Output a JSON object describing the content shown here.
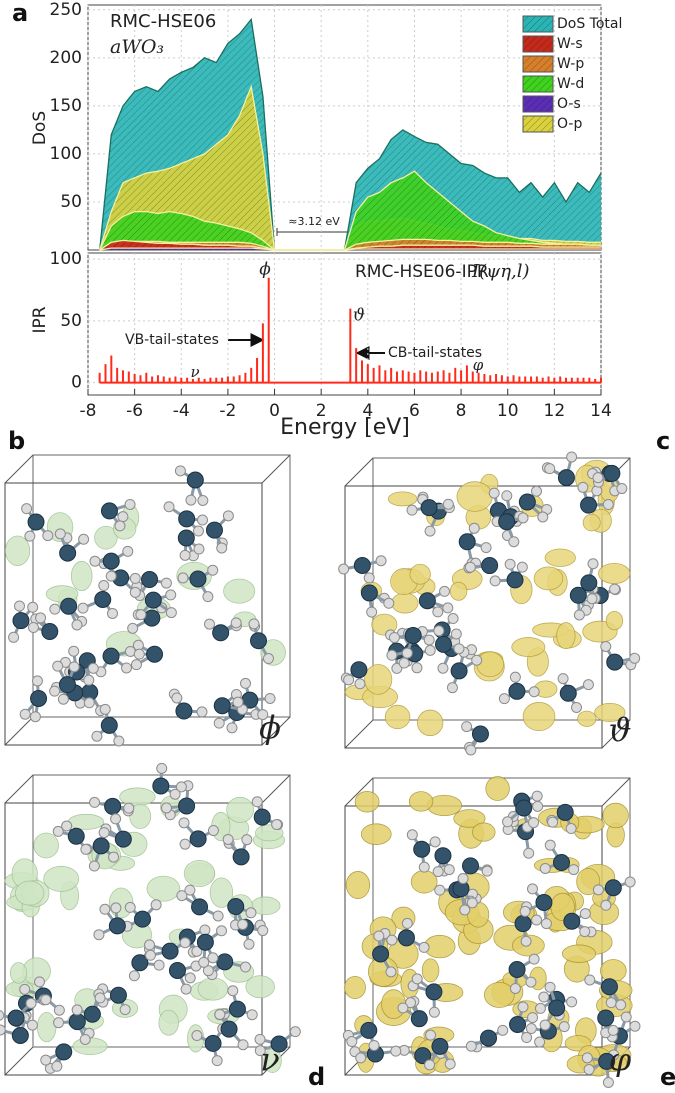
{
  "chart_data": [
    {
      "type": "area",
      "label": "a",
      "ylabel": "DoS",
      "annotations": [
        "RMC-HSE06",
        "aWO₃",
        "≈3.12 eV"
      ],
      "x": [
        -7.5,
        -7,
        -6.5,
        -6,
        -5.5,
        -5,
        -4.5,
        -4,
        -3.5,
        -3,
        -2.5,
        -2,
        -1.5,
        -1,
        -0.5,
        0,
        0.5,
        1,
        1.5,
        2,
        2.5,
        3,
        3.5,
        4,
        4.5,
        5,
        5.5,
        6,
        6.5,
        7,
        7.5,
        8,
        8.5,
        9,
        9.5,
        10,
        10.5,
        11,
        11.5,
        12,
        12.5,
        13,
        13.5,
        14
      ],
      "series": [
        {
          "name": "DoS Total",
          "color": "#2ab5b5",
          "values": [
            0,
            120,
            150,
            165,
            170,
            165,
            178,
            185,
            190,
            200,
            195,
            215,
            225,
            240,
            160,
            0,
            0,
            0,
            0,
            0,
            0,
            0,
            70,
            85,
            95,
            115,
            125,
            118,
            112,
            110,
            100,
            90,
            88,
            80,
            75,
            75,
            60,
            70,
            55,
            70,
            50,
            70,
            60,
            80
          ]
        },
        {
          "name": "W-s",
          "color": "#c42a1c",
          "values": [
            0,
            8,
            10,
            9,
            8,
            7,
            7,
            6,
            6,
            5,
            5,
            5,
            4,
            4,
            2,
            0,
            0,
            0,
            0,
            0,
            0,
            0,
            2,
            3,
            4,
            4,
            5,
            5,
            5,
            5,
            5,
            5,
            5,
            4,
            4,
            4,
            4,
            4,
            3,
            3,
            3,
            3,
            3,
            3
          ]
        },
        {
          "name": "W-p",
          "color": "#d6802c",
          "values": [
            0,
            6,
            8,
            9,
            9,
            9,
            8,
            8,
            8,
            8,
            8,
            8,
            8,
            7,
            4,
            0,
            0,
            0,
            0,
            0,
            0,
            0,
            6,
            8,
            9,
            10,
            11,
            11,
            11,
            10,
            10,
            9,
            9,
            8,
            8,
            8,
            7,
            7,
            6,
            6,
            6,
            6,
            5,
            5
          ]
        },
        {
          "name": "W-d",
          "color": "#3fd21f",
          "values": [
            0,
            25,
            35,
            40,
            40,
            38,
            40,
            38,
            35,
            30,
            28,
            25,
            22,
            18,
            10,
            0,
            0,
            0,
            0,
            0,
            0,
            0,
            40,
            55,
            60,
            70,
            75,
            82,
            70,
            60,
            50,
            40,
            30,
            25,
            18,
            15,
            12,
            10,
            8,
            7,
            6,
            5,
            5,
            4
          ]
        },
        {
          "name": "O-s",
          "color": "#5b2fb5",
          "values": [
            0,
            2,
            2,
            2,
            2,
            2,
            2,
            2,
            2,
            2,
            2,
            2,
            2,
            2,
            1,
            0,
            0,
            0,
            0,
            0,
            0,
            0,
            1,
            1,
            1,
            1,
            1,
            1,
            1,
            1,
            1,
            1,
            1,
            1,
            1,
            1,
            1,
            1,
            1,
            1,
            1,
            1,
            1,
            1
          ]
        },
        {
          "name": "O-p",
          "color": "#d9d23c",
          "values": [
            0,
            40,
            70,
            75,
            80,
            82,
            85,
            90,
            95,
            100,
            110,
            120,
            140,
            170,
            100,
            0,
            0,
            0,
            0,
            0,
            0,
            0,
            25,
            30,
            30,
            32,
            33,
            30,
            28,
            25,
            22,
            20,
            18,
            16,
            15,
            14,
            12,
            12,
            10,
            10,
            9,
            9,
            8,
            8
          ]
        }
      ],
      "xlim": [
        -8,
        14
      ],
      "xticks": [
        -8,
        -6,
        -4,
        -2,
        0,
        2,
        4,
        6,
        8,
        10,
        12,
        14
      ],
      "ylim": [
        0,
        255
      ],
      "yticks": [
        50,
        100,
        150,
        200,
        250
      ],
      "grid": true,
      "legend": "top-right"
    },
    {
      "type": "bar",
      "ylabel": "IPR",
      "xlabel": "Energy [eV]",
      "color": "#ff2a1a",
      "annotations": [
        "RMC-HSE06-IPR",
        "I(ψη,l)",
        "VB-tail-states",
        "CB-tail-states",
        "ϕ",
        "ϑ",
        "ν",
        "φ"
      ],
      "x": [
        -7.5,
        -7.25,
        -7,
        -6.75,
        -6.5,
        -6.25,
        -6,
        -5.75,
        -5.5,
        -5.25,
        -5,
        -4.75,
        -4.5,
        -4.25,
        -4,
        -3.75,
        -3.5,
        -3.25,
        -3,
        -2.75,
        -2.5,
        -2.25,
        -2,
        -1.75,
        -1.5,
        -1.25,
        -1,
        -0.75,
        -0.5,
        -0.25,
        3.25,
        3.5,
        3.75,
        4,
        4.25,
        4.5,
        4.75,
        5,
        5.25,
        5.5,
        5.75,
        6,
        6.25,
        6.5,
        6.75,
        7,
        7.25,
        7.5,
        7.75,
        8,
        8.25,
        8.5,
        8.75,
        9,
        9.25,
        9.5,
        9.75,
        10,
        10.25,
        10.5,
        10.75,
        11,
        11.25,
        11.5,
        11.75,
        12,
        12.25,
        12.5,
        12.75,
        13,
        13.25,
        13.5,
        13.75,
        14
      ],
      "values": [
        8,
        15,
        22,
        12,
        10,
        9,
        7,
        6,
        8,
        5,
        6,
        5,
        4,
        5,
        4,
        4,
        3,
        4,
        3,
        4,
        4,
        4,
        5,
        5,
        6,
        8,
        12,
        20,
        48,
        85,
        60,
        28,
        18,
        15,
        12,
        14,
        10,
        12,
        9,
        10,
        9,
        8,
        10,
        9,
        8,
        9,
        10,
        8,
        12,
        10,
        14,
        9,
        8,
        7,
        6,
        7,
        6,
        5,
        6,
        5,
        5,
        5,
        5,
        4,
        5,
        4,
        5,
        4,
        4,
        4,
        4,
        4,
        3,
        4
      ],
      "xlim": [
        -8,
        14
      ],
      "xticks": [
        -8,
        -6,
        -4,
        -2,
        0,
        2,
        4,
        6,
        8,
        10,
        12,
        14
      ],
      "ylim": [
        -10,
        105
      ],
      "yticks": [
        0,
        50,
        100
      ],
      "grid": true
    }
  ],
  "panels": [
    {
      "label": "b",
      "symbol": "ϕ"
    },
    {
      "label": "c",
      "symbol": "ϑ"
    },
    {
      "label": "d",
      "symbol": "ν"
    },
    {
      "label": "e",
      "symbol": "φ"
    }
  ]
}
